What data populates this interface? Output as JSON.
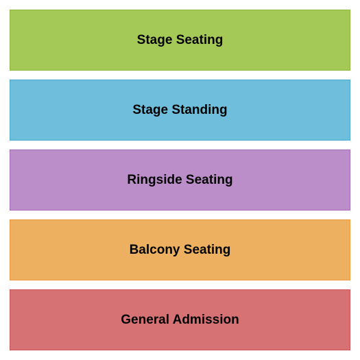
{
  "seating_chart": {
    "type": "infographic",
    "background_color": "#ffffff",
    "label_fontsize": 19,
    "label_fontweight": "bold",
    "label_color": "#000000",
    "gap": 13,
    "padding": 14,
    "sections": [
      {
        "label": "Stage Seating",
        "fill_color": "#a5c957",
        "border_color": "#8fb83f"
      },
      {
        "label": "Stage Standing",
        "fill_color": "#6ebedc",
        "border_color": "#4ca9cd"
      },
      {
        "label": "Ringside Seating",
        "fill_color": "#bb8dc9",
        "border_color": "#a86cb9"
      },
      {
        "label": "Balcony Seating",
        "fill_color": "#edb061",
        "border_color": "#e99b3d"
      },
      {
        "label": "General Admission",
        "fill_color": "#d77274",
        "border_color": "#cc5557"
      }
    ]
  }
}
